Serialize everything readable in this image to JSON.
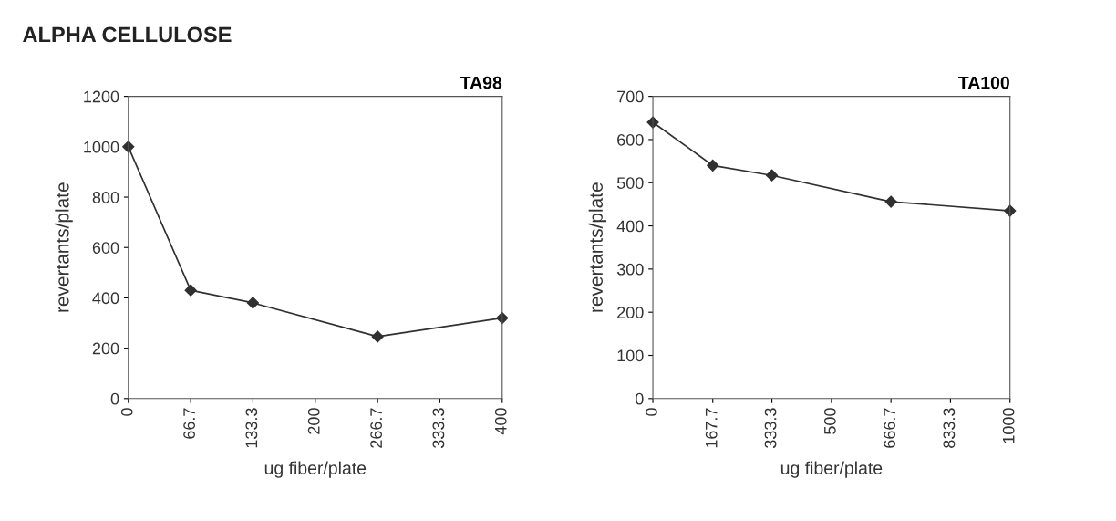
{
  "chart_data": [
    {
      "type": "line",
      "title": "TA98",
      "annotations": [
        "ALPHA CELLULOSE"
      ],
      "xlabel": "ug fiber/plate",
      "ylabel": "revertants/plate",
      "x": [
        0,
        66.7,
        133.3,
        266.7,
        400
      ],
      "series": [
        {
          "color": "#303030",
          "values": [
            1000,
            430,
            380,
            246,
            320
          ]
        }
      ],
      "xlim": [
        0,
        400
      ],
      "xticks": [
        0,
        66.7,
        133.3,
        200,
        266.7,
        333.3,
        400
      ],
      "ylim": [
        0,
        1200
      ],
      "yticks": [
        0,
        200,
        400,
        600,
        800,
        1000,
        1200
      ],
      "grid": false,
      "legend": false,
      "marker": "diamond",
      "line_style": "solid"
    },
    {
      "type": "line",
      "title": "TA100",
      "xlabel": "ug fiber/plate",
      "ylabel": "revertants/plate",
      "x": [
        0,
        167.7,
        333.3,
        666.7,
        1000
      ],
      "series": [
        {
          "color": "#303030",
          "values": [
            640,
            540,
            517,
            456,
            435
          ]
        }
      ],
      "xlim": [
        0,
        1000
      ],
      "xticks": [
        0,
        167.7,
        333.3,
        500,
        666.7,
        833.3,
        1000
      ],
      "ylim": [
        0,
        700
      ],
      "yticks": [
        0,
        100,
        200,
        300,
        400,
        500,
        600,
        700
      ],
      "grid": false,
      "legend": false,
      "marker": "diamond",
      "line_style": "solid"
    }
  ]
}
